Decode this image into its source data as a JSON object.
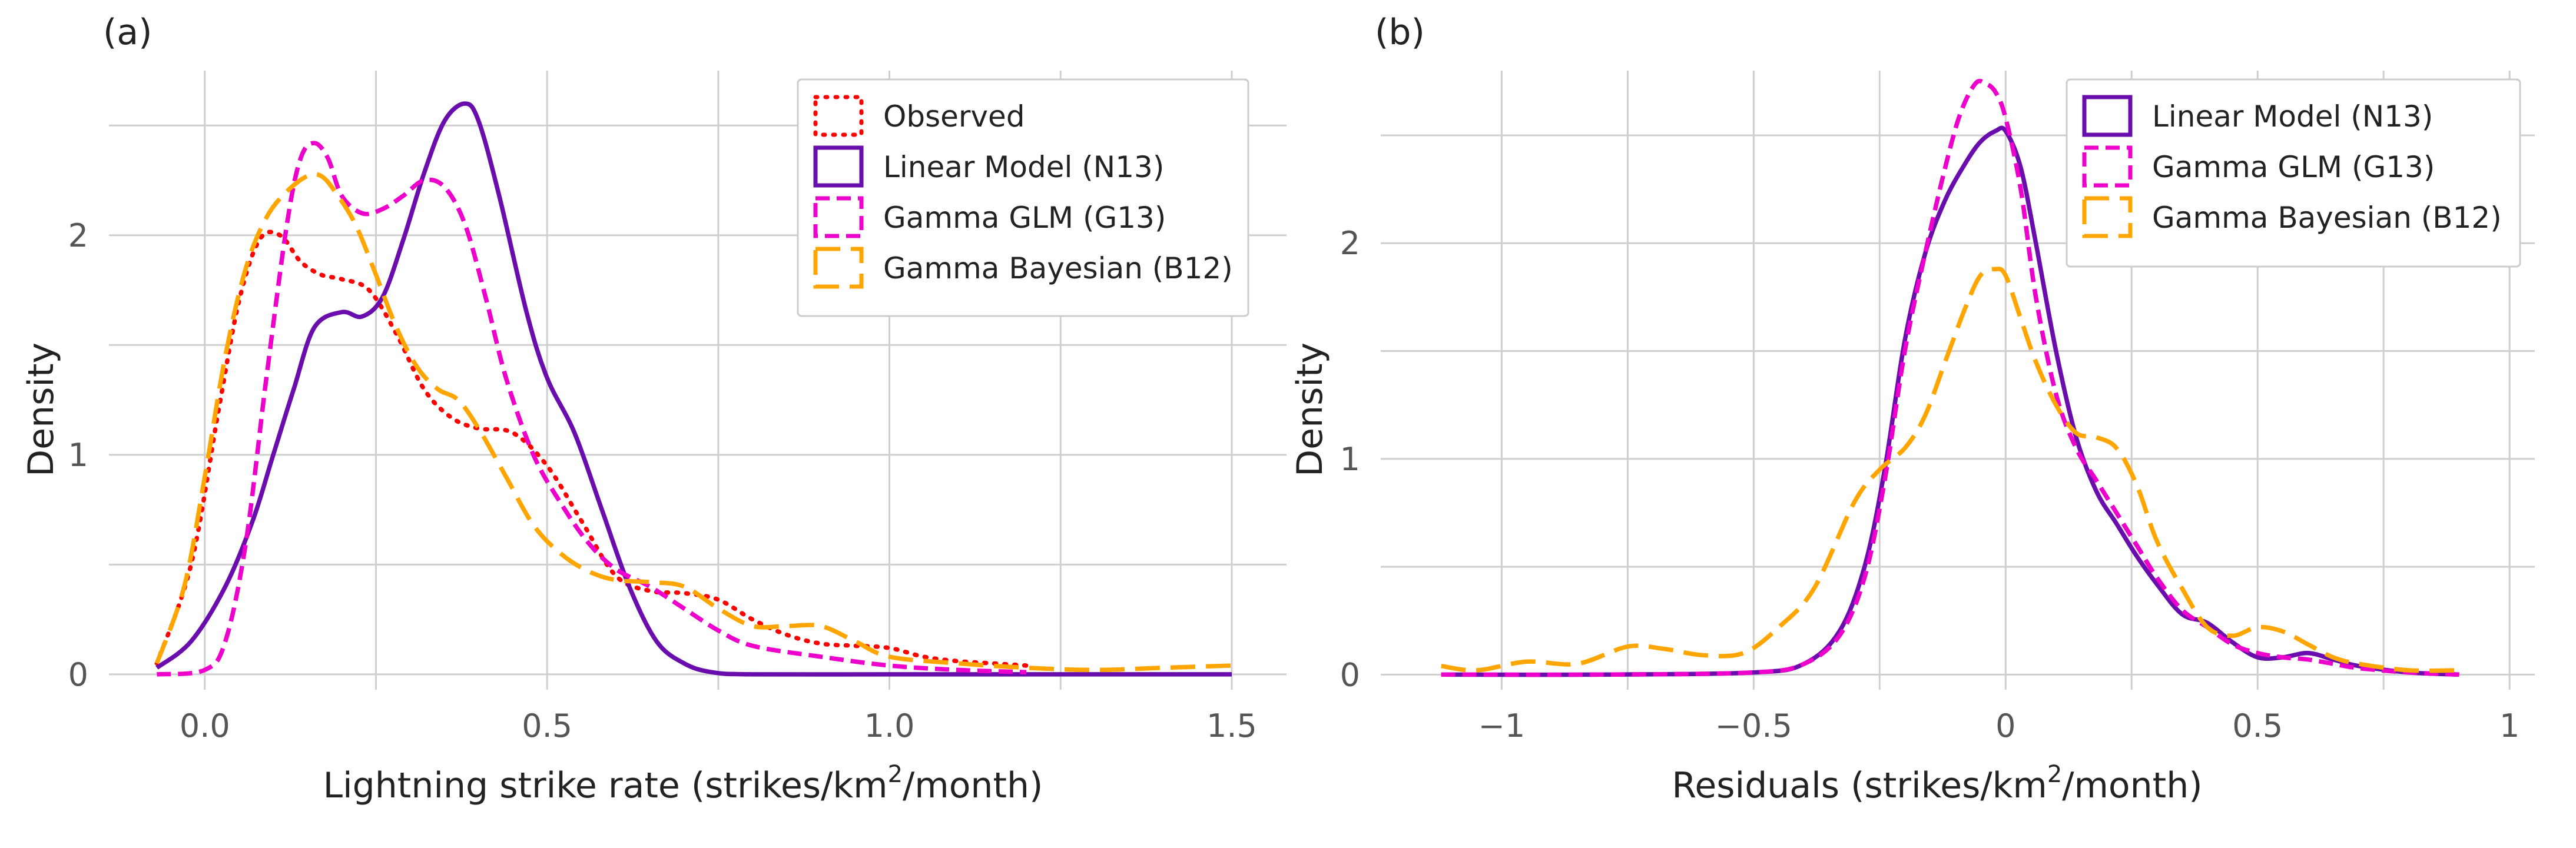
{
  "chart_data": [
    {
      "panel": "(a)",
      "type": "line",
      "subtype": "kde-density",
      "xlabel": "Lightning strike rate (strikes/km2/month)",
      "xlabel_main": "Lightning strike rate (strikes/km",
      "xlabel_sup": "2",
      "xlabel_tail": "/month)",
      "ylabel": "Density",
      "xlim": [
        -0.14,
        1.58
      ],
      "ylim": [
        -0.07,
        2.75
      ],
      "xticks": [
        0.0,
        0.5,
        1.0,
        1.5
      ],
      "xtick_labels": [
        "0.0",
        "0.5",
        "1.0",
        "1.5"
      ],
      "xgrid_minor": [
        0.25,
        0.75,
        1.25
      ],
      "yticks": [
        0,
        1,
        2
      ],
      "ytick_labels": [
        "0",
        "1",
        "2"
      ],
      "ygrid_minor": [
        0.5,
        1.5,
        2.5
      ],
      "legend_position": "top-right",
      "series": [
        {
          "name": "Observed",
          "color": "#ff0000",
          "style": "dotted",
          "x": [
            -0.07,
            -0.02,
            0.02,
            0.05,
            0.08,
            0.11,
            0.14,
            0.17,
            0.2,
            0.24,
            0.28,
            0.32,
            0.36,
            0.4,
            0.45,
            0.5,
            0.55,
            0.6,
            0.65,
            0.7,
            0.75,
            0.8,
            0.85,
            0.9,
            0.95,
            1.0,
            1.05,
            1.1,
            1.15,
            1.2
          ],
          "y": [
            0.05,
            0.5,
            1.2,
            1.7,
            1.98,
            2.0,
            1.88,
            1.82,
            1.8,
            1.75,
            1.55,
            1.3,
            1.17,
            1.12,
            1.1,
            0.95,
            0.7,
            0.45,
            0.38,
            0.37,
            0.34,
            0.25,
            0.18,
            0.14,
            0.13,
            0.12,
            0.08,
            0.06,
            0.05,
            0.04
          ]
        },
        {
          "name": "Linear Model (N13)",
          "color": "#6a0dad",
          "style": "solid",
          "x": [
            -0.07,
            -0.02,
            0.03,
            0.07,
            0.1,
            0.13,
            0.16,
            0.2,
            0.23,
            0.26,
            0.29,
            0.32,
            0.35,
            0.38,
            0.4,
            0.43,
            0.47,
            0.5,
            0.54,
            0.58,
            0.62,
            0.66,
            0.7,
            0.74,
            0.8,
            1.0,
            1.2,
            1.5
          ],
          "y": [
            0.03,
            0.15,
            0.4,
            0.7,
            1.0,
            1.3,
            1.58,
            1.65,
            1.63,
            1.72,
            1.98,
            2.28,
            2.52,
            2.6,
            2.52,
            2.18,
            1.65,
            1.35,
            1.1,
            0.75,
            0.4,
            0.15,
            0.05,
            0.01,
            0.0,
            0.0,
            0.0,
            0.0
          ]
        },
        {
          "name": "Gamma GLM (G13)",
          "color": "#ee00cc",
          "style": "dashed",
          "x": [
            -0.07,
            0.0,
            0.03,
            0.06,
            0.09,
            0.12,
            0.14,
            0.16,
            0.18,
            0.2,
            0.23,
            0.26,
            0.29,
            0.32,
            0.35,
            0.38,
            0.41,
            0.44,
            0.48,
            0.52,
            0.56,
            0.6,
            0.65,
            0.7,
            0.75,
            0.8,
            0.9,
            1.0,
            1.1,
            1.2
          ],
          "y": [
            0.0,
            0.02,
            0.15,
            0.6,
            1.35,
            2.05,
            2.35,
            2.42,
            2.35,
            2.18,
            2.1,
            2.12,
            2.18,
            2.25,
            2.22,
            2.05,
            1.72,
            1.35,
            1.0,
            0.78,
            0.6,
            0.48,
            0.4,
            0.3,
            0.2,
            0.13,
            0.08,
            0.04,
            0.02,
            0.01
          ]
        },
        {
          "name": "Gamma Bayesian (B12)",
          "color": "#ffa500",
          "style": "dashed-long",
          "x": [
            -0.07,
            -0.03,
            0.0,
            0.03,
            0.06,
            0.09,
            0.12,
            0.15,
            0.17,
            0.19,
            0.22,
            0.25,
            0.28,
            0.31,
            0.34,
            0.37,
            0.4,
            0.44,
            0.48,
            0.52,
            0.56,
            0.6,
            0.65,
            0.7,
            0.75,
            0.8,
            0.85,
            0.9,
            0.95,
            1.0,
            1.1,
            1.2,
            1.3,
            1.4,
            1.5
          ],
          "y": [
            0.05,
            0.4,
            0.9,
            1.45,
            1.85,
            2.08,
            2.2,
            2.27,
            2.27,
            2.2,
            2.05,
            1.82,
            1.58,
            1.4,
            1.3,
            1.25,
            1.12,
            0.9,
            0.68,
            0.55,
            0.47,
            0.43,
            0.42,
            0.4,
            0.3,
            0.22,
            0.22,
            0.22,
            0.15,
            0.08,
            0.05,
            0.03,
            0.02,
            0.03,
            0.04
          ]
        }
      ]
    },
    {
      "panel": "(b)",
      "type": "line",
      "subtype": "kde-density",
      "xlabel": "Residuals (strikes/km2/month)",
      "xlabel_main": "Residuals (strikes/km",
      "xlabel_sup": "2",
      "xlabel_tail": "/month)",
      "ylabel": "Density",
      "xlim": [
        -1.24,
        1.05
      ],
      "ylim": [
        -0.07,
        2.8
      ],
      "xticks": [
        -1,
        -0.5,
        0,
        0.5,
        1
      ],
      "xtick_labels": [
        "−1",
        "−0.5",
        "0",
        "0.5",
        "1"
      ],
      "xgrid_minor": [
        -0.75,
        -0.25,
        0.25,
        0.75
      ],
      "yticks": [
        0,
        1,
        2
      ],
      "ytick_labels": [
        "0",
        "1",
        "2"
      ],
      "ygrid_minor": [
        0.5,
        1.5,
        2.5
      ],
      "legend_position": "top-right",
      "series": [
        {
          "name": "Linear Model (N13)",
          "color": "#6a0dad",
          "style": "solid",
          "x": [
            -1.12,
            -0.8,
            -0.5,
            -0.4,
            -0.33,
            -0.28,
            -0.24,
            -0.2,
            -0.16,
            -0.12,
            -0.08,
            -0.05,
            -0.02,
            0.0,
            0.03,
            0.06,
            0.1,
            0.14,
            0.18,
            0.22,
            0.26,
            0.3,
            0.35,
            0.4,
            0.45,
            0.5,
            0.55,
            0.6,
            0.65,
            0.7,
            0.8,
            0.9
          ],
          "y": [
            0.0,
            0.0,
            0.01,
            0.05,
            0.2,
            0.5,
            0.95,
            1.55,
            1.95,
            2.2,
            2.37,
            2.47,
            2.52,
            2.52,
            2.35,
            2.0,
            1.5,
            1.1,
            0.85,
            0.7,
            0.55,
            0.42,
            0.28,
            0.24,
            0.15,
            0.08,
            0.08,
            0.1,
            0.07,
            0.04,
            0.01,
            0.0
          ]
        },
        {
          "name": "Gamma GLM (G13)",
          "color": "#ee00cc",
          "style": "dashed",
          "x": [
            -1.12,
            -0.8,
            -0.5,
            -0.4,
            -0.33,
            -0.28,
            -0.24,
            -0.2,
            -0.16,
            -0.12,
            -0.09,
            -0.06,
            -0.04,
            -0.02,
            0.0,
            0.03,
            0.06,
            0.1,
            0.14,
            0.18,
            0.22,
            0.26,
            0.3,
            0.35,
            0.4,
            0.45,
            0.5,
            0.55,
            0.6,
            0.65,
            0.7,
            0.8,
            0.9
          ],
          "y": [
            0.0,
            0.0,
            0.01,
            0.05,
            0.18,
            0.45,
            0.9,
            1.5,
            1.95,
            2.35,
            2.6,
            2.74,
            2.74,
            2.7,
            2.58,
            2.25,
            1.75,
            1.3,
            1.05,
            0.9,
            0.75,
            0.6,
            0.45,
            0.3,
            0.22,
            0.14,
            0.1,
            0.08,
            0.07,
            0.05,
            0.03,
            0.01,
            0.0
          ]
        },
        {
          "name": "Gamma Bayesian (B12)",
          "color": "#ffa500",
          "style": "dashed-long",
          "x": [
            -1.12,
            -1.05,
            -0.95,
            -0.85,
            -0.75,
            -0.68,
            -0.6,
            -0.52,
            -0.45,
            -0.38,
            -0.3,
            -0.25,
            -0.2,
            -0.16,
            -0.12,
            -0.08,
            -0.05,
            -0.02,
            0.0,
            0.03,
            0.06,
            0.1,
            0.14,
            0.18,
            0.22,
            0.26,
            0.3,
            0.35,
            0.4,
            0.45,
            0.5,
            0.55,
            0.6,
            0.65,
            0.7,
            0.8,
            0.9
          ],
          "y": [
            0.04,
            0.02,
            0.06,
            0.05,
            0.13,
            0.12,
            0.09,
            0.1,
            0.22,
            0.4,
            0.8,
            0.95,
            1.05,
            1.2,
            1.45,
            1.7,
            1.85,
            1.88,
            1.85,
            1.65,
            1.45,
            1.25,
            1.12,
            1.1,
            1.05,
            0.88,
            0.62,
            0.4,
            0.22,
            0.18,
            0.22,
            0.2,
            0.14,
            0.08,
            0.05,
            0.02,
            0.02
          ]
        }
      ]
    }
  ]
}
